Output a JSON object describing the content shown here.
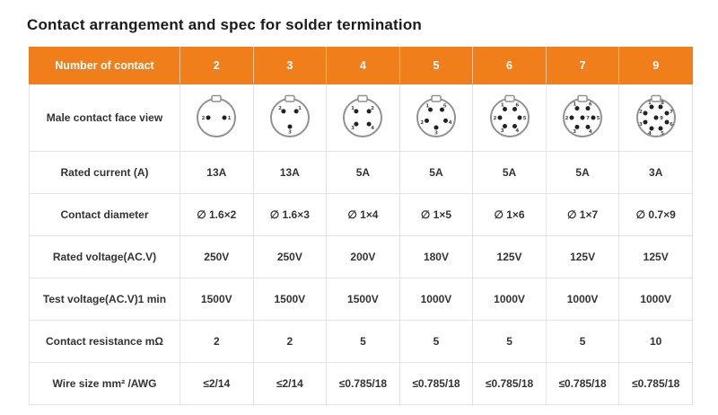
{
  "title": "Contact arrangement and spec for solder termination",
  "colors": {
    "header_bg": "#EF7E1B",
    "header_text": "#FFFFFF",
    "label_bg": "#F6F6F6",
    "border": "#E3E3E3",
    "text": "#333333"
  },
  "table": {
    "header": {
      "label": "Number of contact",
      "columns": [
        "2",
        "3",
        "4",
        "5",
        "6",
        "7",
        "9"
      ]
    },
    "face_view": {
      "label": "Male contact face view",
      "pin_counts": [
        2,
        3,
        4,
        5,
        6,
        7,
        9
      ]
    },
    "rows": [
      {
        "label": "Rated current (A)",
        "values": [
          "13A",
          "13A",
          "5A",
          "5A",
          "5A",
          "5A",
          "3A"
        ]
      },
      {
        "label": "Contact diameter",
        "values": [
          "∅ 1.6×2",
          "∅ 1.6×3",
          "∅ 1×4",
          "∅ 1×5",
          "∅ 1×6",
          "∅ 1×7",
          "∅ 0.7×9"
        ]
      },
      {
        "label": "Rated voltage(AC.V)",
        "values": [
          "250V",
          "250V",
          "200V",
          "180V",
          "125V",
          "125V",
          "125V"
        ]
      },
      {
        "label": "Test voltage(AC.V)1 min",
        "values": [
          "1500V",
          "1500V",
          "1500V",
          "1000V",
          "1000V",
          "1000V",
          "1000V"
        ]
      },
      {
        "label": "Contact resistance mΩ",
        "values": [
          "2",
          "2",
          "5",
          "5",
          "5",
          "5",
          "10"
        ]
      },
      {
        "label": "Wire size mm² /AWG",
        "values": [
          "≤2/14",
          "≤2/14",
          "≤0.785/18",
          "≤0.785/18",
          "≤0.785/18",
          "≤0.785/18",
          "≤0.785/18"
        ]
      }
    ]
  }
}
